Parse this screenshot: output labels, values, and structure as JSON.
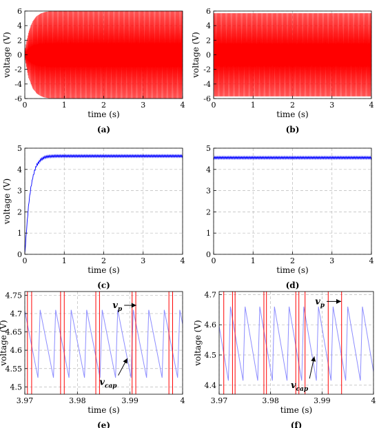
{
  "chart_data": [
    {
      "id": "a",
      "type": "line",
      "caption": "(a)",
      "xlabel": "time (s)",
      "ylabel": "voltage (V)",
      "xlim": [
        0,
        4
      ],
      "ylim": [
        -6,
        6
      ],
      "xticks": [
        "0",
        "1",
        "2",
        "3",
        "4"
      ],
      "yticks": [
        "-6",
        "-4",
        "-2",
        "0",
        "2",
        "4",
        "6"
      ],
      "grid": true,
      "series": [
        {
          "color": "#ff0000",
          "kind": "ac-envelope",
          "x": [
            0,
            0.05,
            0.1,
            0.2,
            0.3,
            0.4,
            0.5,
            0.6,
            0.8,
            1,
            2,
            3,
            4
          ],
          "amplitude": [
            0.5,
            2.0,
            3.2,
            4.6,
            5.3,
            5.65,
            5.85,
            5.95,
            6.0,
            6.0,
            6.0,
            6.0,
            6.0
          ]
        }
      ]
    },
    {
      "id": "b",
      "type": "line",
      "caption": "(b)",
      "xlabel": "time (s)",
      "ylabel": "voltage (V)",
      "xlim": [
        0,
        4
      ],
      "ylim": [
        -6,
        6
      ],
      "xticks": [
        "0",
        "1",
        "2",
        "3",
        "4"
      ],
      "yticks": [
        "-6",
        "-4",
        "-2",
        "0",
        "2",
        "4",
        "6"
      ],
      "grid": true,
      "series": [
        {
          "color": "#ff0000",
          "kind": "ac-envelope",
          "x": [
            0,
            0.1,
            4
          ],
          "amplitude": [
            5.7,
            5.7,
            5.7
          ]
        }
      ]
    },
    {
      "id": "c",
      "type": "line",
      "caption": "(c)",
      "xlabel": "time (s)",
      "ylabel": "voltage (V)",
      "xlim": [
        0,
        4
      ],
      "ylim": [
        0,
        5
      ],
      "xticks": [
        "0",
        "1",
        "2",
        "3",
        "4"
      ],
      "yticks": [
        "0",
        "1",
        "2",
        "3",
        "4",
        "5"
      ],
      "grid": true,
      "series": [
        {
          "color": "#0000ff",
          "kind": "ripple-band",
          "x": [
            0,
            0.05,
            0.1,
            0.15,
            0.2,
            0.25,
            0.3,
            0.4,
            0.5,
            0.6,
            0.8,
            1,
            2,
            3,
            4
          ],
          "y": [
            0,
            1.3,
            2.4,
            3.1,
            3.6,
            3.95,
            4.2,
            4.45,
            4.57,
            4.61,
            4.63,
            4.63,
            4.63,
            4.63,
            4.63
          ],
          "ripple": 0.1
        }
      ]
    },
    {
      "id": "d",
      "type": "line",
      "caption": "(d)",
      "xlabel": "time (s)",
      "ylabel": "",
      "xlim": [
        0,
        4
      ],
      "ylim": [
        0,
        5
      ],
      "xticks": [
        "0",
        "1",
        "2",
        "3",
        "4"
      ],
      "yticks": [
        "0",
        "1",
        "2",
        "3",
        "4",
        "5"
      ],
      "grid": true,
      "series": [
        {
          "color": "#0000ff",
          "kind": "ripple-band",
          "x": [
            0,
            4
          ],
          "y": [
            4.55,
            4.55
          ],
          "ripple": 0.1
        }
      ]
    },
    {
      "id": "e",
      "type": "line",
      "caption": "(e)",
      "xlabel": "time (s)",
      "ylabel": "voltage (V)",
      "xlim": [
        3.97,
        4.0
      ],
      "ylim": [
        4.48,
        4.76
      ],
      "xticks": [
        "3.97",
        "3.98",
        "3.99",
        "4"
      ],
      "yticks": [
        "4.5",
        "4.55",
        "4.6",
        "4.65",
        "4.7",
        "4.75"
      ],
      "grid": true,
      "annotations": [
        {
          "text": "v",
          "sub": "p",
          "x": 3.9885,
          "y": 4.715,
          "arrow_to": [
            3.9912,
            4.715
          ]
        },
        {
          "text": "v",
          "sub": "cap",
          "x": 3.9875,
          "y": 4.505,
          "arrow_to": [
            3.9895,
            4.578
          ]
        }
      ],
      "series": [
        {
          "name": "v_cap",
          "color": "#8c8cff",
          "kind": "sawtooth",
          "x_start": 3.97,
          "x_end": 4.0,
          "period": 0.00295,
          "phase": 0.0025,
          "y_min": 4.525,
          "y_max": 4.71
        },
        {
          "name": "v_p",
          "color": "#ff0000",
          "kind": "pulses",
          "x": [
            3.9705,
            3.9713,
            3.9768,
            3.9775,
            3.9835,
            3.9842,
            3.9904,
            3.9911,
            3.9974,
            3.9981
          ]
        }
      ]
    },
    {
      "id": "f",
      "type": "line",
      "caption": "(f)",
      "xlabel": "time (s)",
      "ylabel": "voltage (V)",
      "xlim": [
        3.97,
        4.0
      ],
      "ylim": [
        4.37,
        4.71
      ],
      "xticks": [
        "3.97",
        "3.98",
        "3.99",
        "4"
      ],
      "yticks": [
        "4.4",
        "4.5",
        "4.6",
        "4.7"
      ],
      "grid": true,
      "annotations": [
        {
          "text": "v",
          "sub": "p",
          "x": 3.9905,
          "y": 4.668,
          "arrow_to": [
            3.9937,
            4.668
          ]
        },
        {
          "text": "v",
          "sub": "cap",
          "x": 3.9873,
          "y": 4.39,
          "arrow_to": [
            3.9885,
            4.495
          ]
        }
      ],
      "series": [
        {
          "name": "v_cap",
          "color": "#8c8cff",
          "kind": "sawtooth",
          "x_start": 3.97,
          "x_end": 4.0,
          "period": 0.00285,
          "phase": 0.0018,
          "y_min": 4.415,
          "y_max": 4.66
        },
        {
          "name": "v_p",
          "color": "#ff0000",
          "kind": "pulses",
          "x": [
            3.9709,
            3.9726,
            3.9731,
            3.9787,
            3.9792,
            3.9849,
            3.9855,
            3.9867,
            3.9912,
            3.9938
          ]
        }
      ]
    }
  ]
}
